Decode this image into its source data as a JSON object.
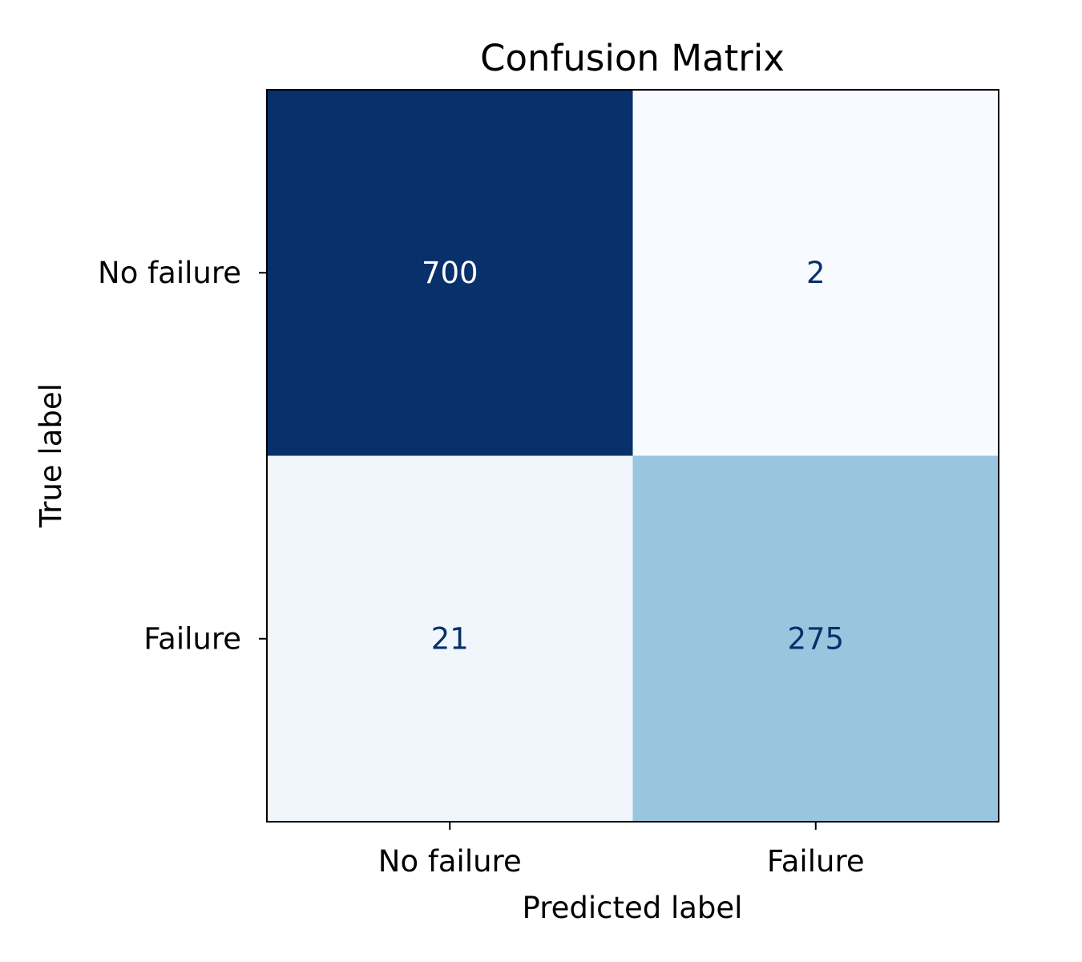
{
  "chart_data": {
    "type": "heatmap",
    "title": "Confusion Matrix",
    "xlabel": "Predicted label",
    "ylabel": "True label",
    "x_categories": [
      "No failure",
      "Failure"
    ],
    "y_categories": [
      "No failure",
      "Failure"
    ],
    "values": [
      [
        700,
        2
      ],
      [
        21,
        275
      ]
    ],
    "colormap": "Blues",
    "colors": {
      "cells": [
        [
          "#08306b",
          "#f7fbff"
        ],
        [
          "#f1f6fd",
          "#98c6df"
        ]
      ],
      "text": [
        [
          "#ffffff",
          "#08306b"
        ],
        [
          "#08306b",
          "#08306b"
        ]
      ]
    },
    "grid": false,
    "legend": "none"
  }
}
